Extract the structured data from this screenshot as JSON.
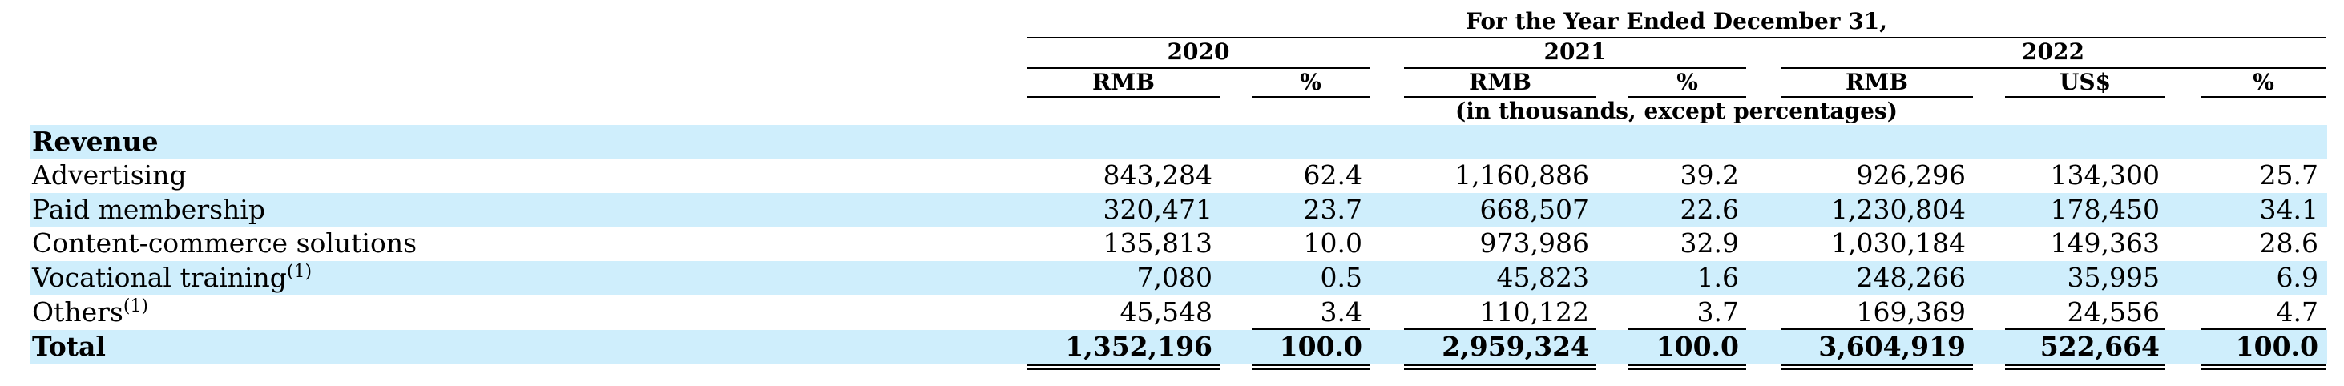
{
  "header": {
    "period_title": "For the Year Ended December 31,",
    "years": [
      "2020",
      "2021",
      "2022"
    ],
    "units": [
      "RMB",
      "%",
      "RMB",
      "%",
      "RMB",
      "US$",
      "%"
    ],
    "note": "(in thousands, except percentages)"
  },
  "section_title": "Revenue",
  "rows": [
    {
      "label": "Advertising",
      "sup": "",
      "values": [
        "843,284",
        "62.4",
        "1,160,886",
        "39.2",
        "926,296",
        "134,300",
        "25.7"
      ]
    },
    {
      "label": "Paid membership",
      "sup": "",
      "values": [
        "320,471",
        "23.7",
        "668,507",
        "22.6",
        "1,230,804",
        "178,450",
        "34.1"
      ]
    },
    {
      "label": "Content-commerce solutions",
      "sup": "",
      "values": [
        "135,813",
        "10.0",
        "973,986",
        "32.9",
        "1,030,184",
        "149,363",
        "28.6"
      ]
    },
    {
      "label": "Vocational training",
      "sup": "(1)",
      "values": [
        "7,080",
        "0.5",
        "45,823",
        "1.6",
        "248,266",
        "35,995",
        "6.9"
      ]
    },
    {
      "label": "Others",
      "sup": "(1)",
      "values": [
        "45,548",
        "3.4",
        "110,122",
        "3.7",
        "169,369",
        "24,556",
        "4.7"
      ]
    }
  ],
  "total": {
    "label": "Total",
    "values": [
      "1,352,196",
      "100.0",
      "2,959,324",
      "100.0",
      "3,604,919",
      "522,664",
      "100.0"
    ]
  },
  "colors": {
    "band": "#cfeefc",
    "text": "#000000"
  }
}
